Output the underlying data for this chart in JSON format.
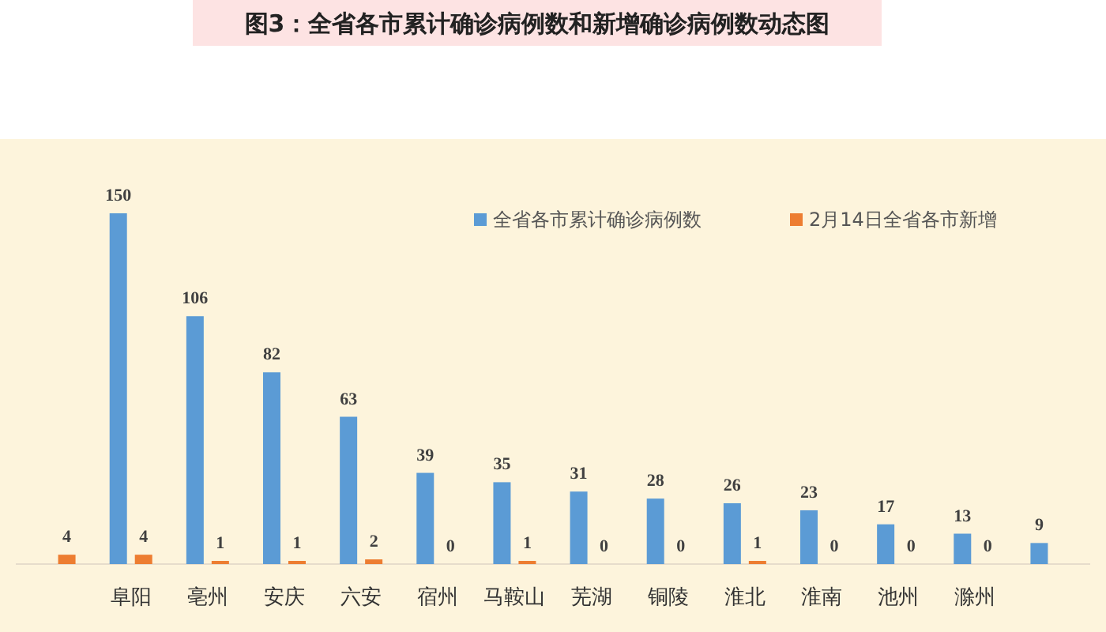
{
  "chart_data": {
    "type": "bar",
    "title": "图3：全省各市累计确诊病例数和新增确诊病例数动态图",
    "categories": [
      null,
      "阜阳",
      "亳州",
      "安庆",
      "六安",
      "宿州",
      "马鞍山",
      "芜湖",
      "铜陵",
      "淮北",
      "淮南",
      "池州",
      "滁州",
      null
    ],
    "series": [
      {
        "name": "全省各市累计确诊病例数",
        "color": "#5b9bd5",
        "values": [
          null,
          150,
          106,
          82,
          63,
          39,
          35,
          31,
          28,
          26,
          23,
          17,
          13,
          9
        ]
      },
      {
        "name": "2月14日全省各市新增",
        "color": "#ed7d31",
        "values": [
          4,
          4,
          1,
          1,
          2,
          0,
          1,
          0,
          0,
          1,
          0,
          0,
          0,
          null
        ]
      }
    ],
    "data_labels": true,
    "legend": "top right"
  }
}
